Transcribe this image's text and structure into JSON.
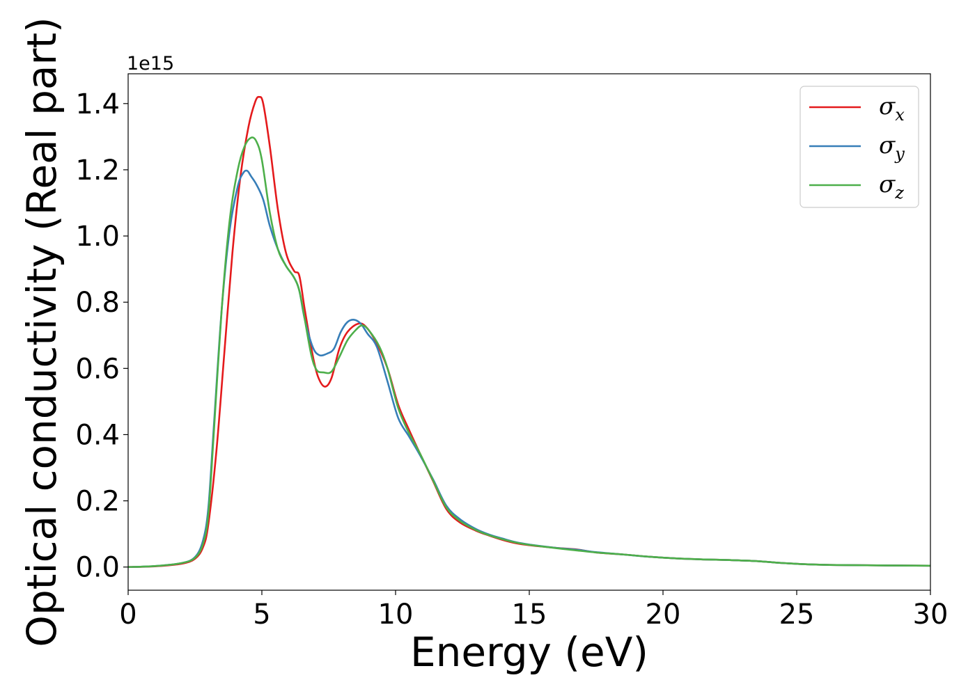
{
  "chart_data": {
    "type": "line",
    "xlabel": "Energy (eV)",
    "ylabel": "Optical conductivity (Real part)",
    "y_offset_label": "1e15",
    "xlim": [
      0,
      30
    ],
    "ylim": [
      -0.07,
      1.49
    ],
    "x_ticks": [
      0,
      5,
      10,
      15,
      20,
      25,
      30
    ],
    "x_tick_labels": [
      "0",
      "5",
      "10",
      "15",
      "20",
      "25",
      "30"
    ],
    "y_ticks": [
      0.0,
      0.2,
      0.4,
      0.6,
      0.8,
      1.0,
      1.2,
      1.4
    ],
    "y_tick_labels": [
      "0.0",
      "0.2",
      "0.4",
      "0.6",
      "0.8",
      "1.0",
      "1.2",
      "1.4"
    ],
    "grid": false,
    "legend_position": "top-right",
    "series": [
      {
        "name": "σx",
        "symbol": "σ",
        "subscript": "x",
        "color": "#e41a1c",
        "points": [
          [
            0,
            0
          ],
          [
            1,
            0.002
          ],
          [
            2,
            0.01
          ],
          [
            2.5,
            0.025
          ],
          [
            2.8,
            0.06
          ],
          [
            3.0,
            0.13
          ],
          [
            3.3,
            0.35
          ],
          [
            3.6,
            0.65
          ],
          [
            3.9,
            0.95
          ],
          [
            4.2,
            1.18
          ],
          [
            4.5,
            1.33
          ],
          [
            4.75,
            1.405
          ],
          [
            4.9,
            1.42
          ],
          [
            5.05,
            1.4
          ],
          [
            5.3,
            1.27
          ],
          [
            5.6,
            1.08
          ],
          [
            5.9,
            0.95
          ],
          [
            6.2,
            0.895
          ],
          [
            6.4,
            0.88
          ],
          [
            6.6,
            0.78
          ],
          [
            6.9,
            0.64
          ],
          [
            7.1,
            0.575
          ],
          [
            7.35,
            0.545
          ],
          [
            7.6,
            0.57
          ],
          [
            7.9,
            0.66
          ],
          [
            8.2,
            0.71
          ],
          [
            8.6,
            0.735
          ],
          [
            8.9,
            0.725
          ],
          [
            9.3,
            0.675
          ],
          [
            9.7,
            0.6
          ],
          [
            10.1,
            0.49
          ],
          [
            10.5,
            0.415
          ],
          [
            10.9,
            0.345
          ],
          [
            11.4,
            0.26
          ],
          [
            11.9,
            0.175
          ],
          [
            12.4,
            0.135
          ],
          [
            13,
            0.11
          ],
          [
            13.5,
            0.095
          ],
          [
            14,
            0.082
          ],
          [
            14.5,
            0.072
          ],
          [
            15,
            0.066
          ],
          [
            16,
            0.058
          ],
          [
            16.8,
            0.053
          ],
          [
            17.5,
            0.044
          ],
          [
            18.5,
            0.038
          ],
          [
            19.5,
            0.031
          ],
          [
            20.5,
            0.026
          ],
          [
            21.5,
            0.023
          ],
          [
            22.5,
            0.021
          ],
          [
            23.5,
            0.018
          ],
          [
            24.5,
            0.012
          ],
          [
            25.5,
            0.008
          ],
          [
            26.5,
            0.006
          ],
          [
            28,
            0.005
          ],
          [
            30,
            0.004
          ]
        ]
      },
      {
        "name": "σy",
        "symbol": "σ",
        "subscript": "y",
        "color": "#377eb8",
        "points": [
          [
            0,
            0
          ],
          [
            1,
            0.003
          ],
          [
            2,
            0.012
          ],
          [
            2.5,
            0.03
          ],
          [
            2.8,
            0.08
          ],
          [
            3.0,
            0.18
          ],
          [
            3.2,
            0.42
          ],
          [
            3.5,
            0.78
          ],
          [
            3.8,
            1.02
          ],
          [
            4.1,
            1.15
          ],
          [
            4.3,
            1.19
          ],
          [
            4.45,
            1.197
          ],
          [
            4.6,
            1.18
          ],
          [
            4.8,
            1.155
          ],
          [
            5.05,
            1.11
          ],
          [
            5.3,
            1.03
          ],
          [
            5.6,
            0.96
          ],
          [
            5.9,
            0.91
          ],
          [
            6.2,
            0.875
          ],
          [
            6.4,
            0.835
          ],
          [
            6.6,
            0.75
          ],
          [
            6.9,
            0.665
          ],
          [
            7.15,
            0.64
          ],
          [
            7.45,
            0.645
          ],
          [
            7.7,
            0.66
          ],
          [
            7.95,
            0.71
          ],
          [
            8.2,
            0.74
          ],
          [
            8.45,
            0.747
          ],
          [
            8.7,
            0.735
          ],
          [
            8.95,
            0.705
          ],
          [
            9.3,
            0.665
          ],
          [
            9.7,
            0.56
          ],
          [
            10.1,
            0.45
          ],
          [
            10.5,
            0.395
          ],
          [
            10.9,
            0.34
          ],
          [
            11.4,
            0.265
          ],
          [
            11.9,
            0.185
          ],
          [
            12.4,
            0.145
          ],
          [
            13,
            0.115
          ],
          [
            13.5,
            0.098
          ],
          [
            14,
            0.086
          ],
          [
            14.5,
            0.075
          ],
          [
            15,
            0.068
          ],
          [
            16,
            0.058
          ],
          [
            16.8,
            0.052
          ],
          [
            17.5,
            0.045
          ],
          [
            18.5,
            0.038
          ],
          [
            19.5,
            0.031
          ],
          [
            20.5,
            0.026
          ],
          [
            21.5,
            0.023
          ],
          [
            22.5,
            0.021
          ],
          [
            23.5,
            0.018
          ],
          [
            24.5,
            0.012
          ],
          [
            25.5,
            0.008
          ],
          [
            26.5,
            0.006
          ],
          [
            28,
            0.005
          ],
          [
            30,
            0.004
          ]
        ]
      },
      {
        "name": "σz",
        "symbol": "σ",
        "subscript": "z",
        "color": "#4daf4a",
        "points": [
          [
            0,
            0
          ],
          [
            1,
            0.003
          ],
          [
            2,
            0.012
          ],
          [
            2.5,
            0.028
          ],
          [
            2.8,
            0.07
          ],
          [
            3.0,
            0.16
          ],
          [
            3.2,
            0.4
          ],
          [
            3.5,
            0.78
          ],
          [
            3.8,
            1.05
          ],
          [
            4.1,
            1.2
          ],
          [
            4.35,
            1.27
          ],
          [
            4.6,
            1.297
          ],
          [
            4.8,
            1.285
          ],
          [
            5.0,
            1.23
          ],
          [
            5.3,
            1.07
          ],
          [
            5.6,
            0.96
          ],
          [
            5.9,
            0.91
          ],
          [
            6.2,
            0.875
          ],
          [
            6.4,
            0.835
          ],
          [
            6.6,
            0.75
          ],
          [
            6.85,
            0.64
          ],
          [
            7.05,
            0.595
          ],
          [
            7.3,
            0.588
          ],
          [
            7.6,
            0.59
          ],
          [
            7.9,
            0.635
          ],
          [
            8.2,
            0.685
          ],
          [
            8.5,
            0.715
          ],
          [
            8.75,
            0.73
          ],
          [
            9.0,
            0.715
          ],
          [
            9.4,
            0.665
          ],
          [
            9.7,
            0.6
          ],
          [
            10.1,
            0.48
          ],
          [
            10.5,
            0.405
          ],
          [
            10.9,
            0.345
          ],
          [
            11.4,
            0.262
          ],
          [
            11.9,
            0.18
          ],
          [
            12.4,
            0.14
          ],
          [
            13,
            0.112
          ],
          [
            13.5,
            0.096
          ],
          [
            14,
            0.084
          ],
          [
            14.5,
            0.074
          ],
          [
            15,
            0.067
          ],
          [
            16,
            0.057
          ],
          [
            16.8,
            0.05
          ],
          [
            17.5,
            0.044
          ],
          [
            18.5,
            0.038
          ],
          [
            19.5,
            0.031
          ],
          [
            20.5,
            0.026
          ],
          [
            21.5,
            0.023
          ],
          [
            22.5,
            0.021
          ],
          [
            23.5,
            0.018
          ],
          [
            24.5,
            0.012
          ],
          [
            25.5,
            0.008
          ],
          [
            26.5,
            0.006
          ],
          [
            28,
            0.005
          ],
          [
            30,
            0.004
          ]
        ]
      }
    ]
  }
}
